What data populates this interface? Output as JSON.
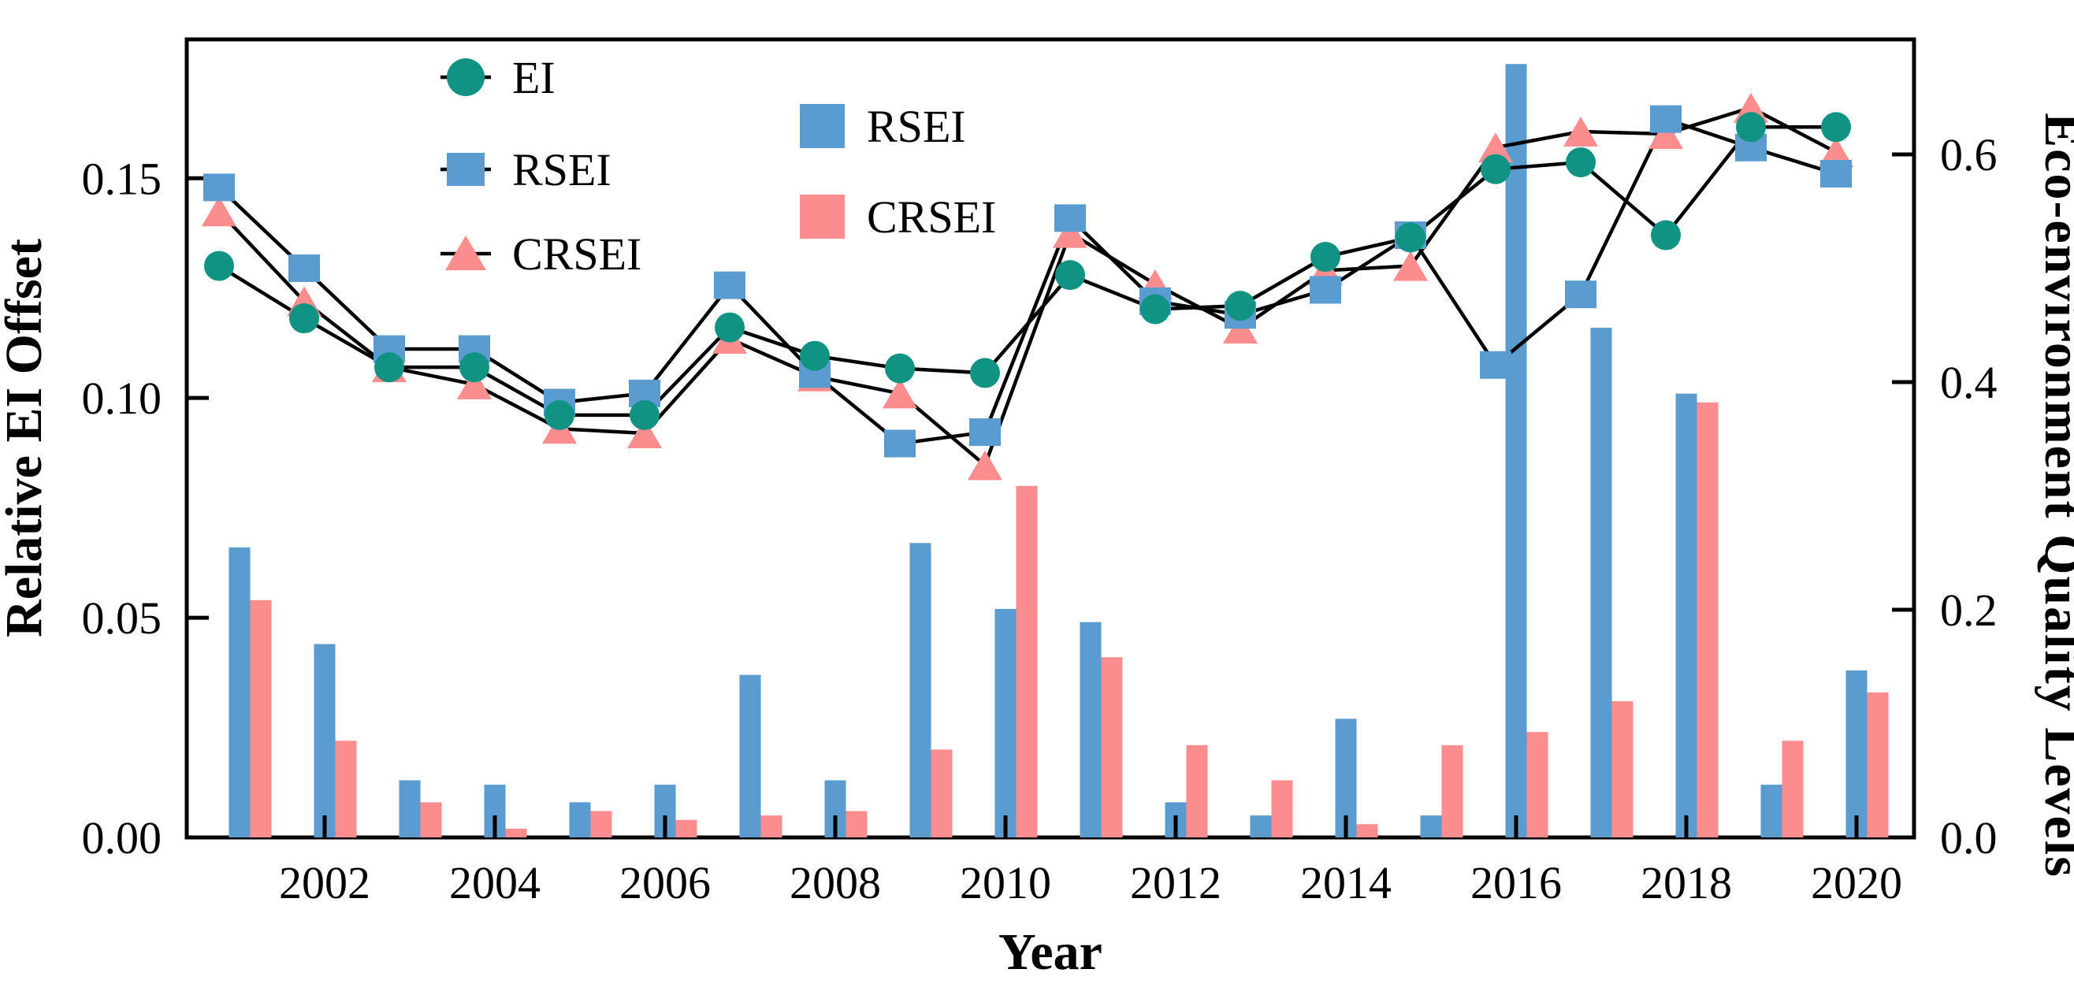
{
  "figure": {
    "xlabel": "Year",
    "ylabel_left": "Relative EI Offset",
    "ylabel_right": "Eco-environment Quality Levels",
    "colors": {
      "teal": "#119384",
      "blue": "#5B9CD0",
      "pink": "#FB8D8F",
      "line": "#000000",
      "axis": "#000000",
      "background": "#ffffff"
    },
    "line_legend": [
      {
        "label": "EI",
        "marker": "circle",
        "color": "#119384"
      },
      {
        "label": "RSEI",
        "marker": "square",
        "color": "#5B9CD0"
      },
      {
        "label": "CRSEI",
        "marker": "triangle",
        "color": "#FB8D8F"
      }
    ],
    "bar_legend": [
      {
        "label": "RSEI",
        "color": "#5B9CD0"
      },
      {
        "label": "CRSEI",
        "color": "#FB8D8F"
      }
    ]
  },
  "chart_data": {
    "type": "line+bar",
    "title": "",
    "xlabel": "Year",
    "x": [
      2001,
      2002,
      2003,
      2004,
      2005,
      2006,
      2007,
      2008,
      2009,
      2010,
      2011,
      2012,
      2013,
      2014,
      2015,
      2016,
      2017,
      2018,
      2019,
      2020
    ],
    "x_ticks": {
      "values": [
        2002,
        2004,
        2006,
        2008,
        2010,
        2012,
        2014,
        2016,
        2018,
        2020
      ],
      "labels": [
        "2002",
        "2004",
        "2006",
        "2008",
        "2010",
        "2012",
        "2014",
        "2016",
        "2018",
        "2020"
      ]
    },
    "left_axis": {
      "label": "Relative EI Offset",
      "range": [
        0,
        0.1816
      ],
      "tick_values": [
        0.05,
        0.1,
        0.15
      ],
      "tick_labels_all": [
        "0.00",
        "0.05",
        "0.10",
        "0.15"
      ],
      "tick_label_values": [
        0,
        0.05,
        0.1,
        0.15
      ]
    },
    "right_axis": {
      "label": "Eco-environment Quality Levels",
      "range": [
        0,
        0.701
      ],
      "tick_values": [
        0.2,
        0.4,
        0.6
      ],
      "tick_labels_all": [
        "0.0",
        "0.2",
        "0.4",
        "0.6"
      ],
      "tick_label_values": [
        0,
        0.2,
        0.4,
        0.6
      ]
    },
    "line_series": [
      {
        "name": "EI",
        "axis": "right",
        "marker": "circle",
        "color": "#119384",
        "values": [
          0.502,
          0.456,
          0.413,
          0.413,
          0.371,
          0.371,
          0.448,
          0.423,
          0.412,
          0.408,
          0.494,
          0.464,
          0.467,
          0.51,
          0.527,
          0.587,
          0.593,
          0.529,
          0.624,
          0.624
        ]
      },
      {
        "name": "RSEI",
        "axis": "right",
        "marker": "square",
        "color": "#5B9CD0",
        "values": [
          0.571,
          0.5,
          0.429,
          0.429,
          0.382,
          0.39,
          0.485,
          0.407,
          0.346,
          0.356,
          0.544,
          0.471,
          0.459,
          0.481,
          0.529,
          0.415,
          0.477,
          0.631,
          0.606,
          0.583
        ]
      },
      {
        "name": "CRSEI",
        "axis": "right",
        "marker": "triangle",
        "color": "#FB8D8F",
        "values": [
          0.55,
          0.471,
          0.413,
          0.398,
          0.359,
          0.355,
          0.438,
          0.405,
          0.39,
          0.327,
          0.531,
          0.486,
          0.447,
          0.498,
          0.502,
          0.606,
          0.62,
          0.618,
          0.641,
          0.602
        ]
      }
    ],
    "bar_series": [
      {
        "name": "RSEI",
        "axis": "left",
        "color": "#5B9CD0",
        "values": [
          0.066,
          0.044,
          0.013,
          0.012,
          0.008,
          0.012,
          0.037,
          0.013,
          0.067,
          0.052,
          0.049,
          0.008,
          0.005,
          0.027,
          0.005,
          0.176,
          0.116,
          0.101,
          0.012,
          0.038
        ]
      },
      {
        "name": "CRSEI",
        "axis": "left",
        "color": "#FB8D8F",
        "values": [
          0.054,
          0.022,
          0.008,
          0.002,
          0.006,
          0.004,
          0.005,
          0.006,
          0.02,
          0.08,
          0.041,
          0.021,
          0.013,
          0.003,
          0.021,
          0.024,
          0.031,
          0.099,
          0.022,
          0.033
        ]
      }
    ],
    "legend_position": {
      "line_legend": "upper-left-inside",
      "bar_legend": "upper-center-inside"
    },
    "grid": false
  }
}
